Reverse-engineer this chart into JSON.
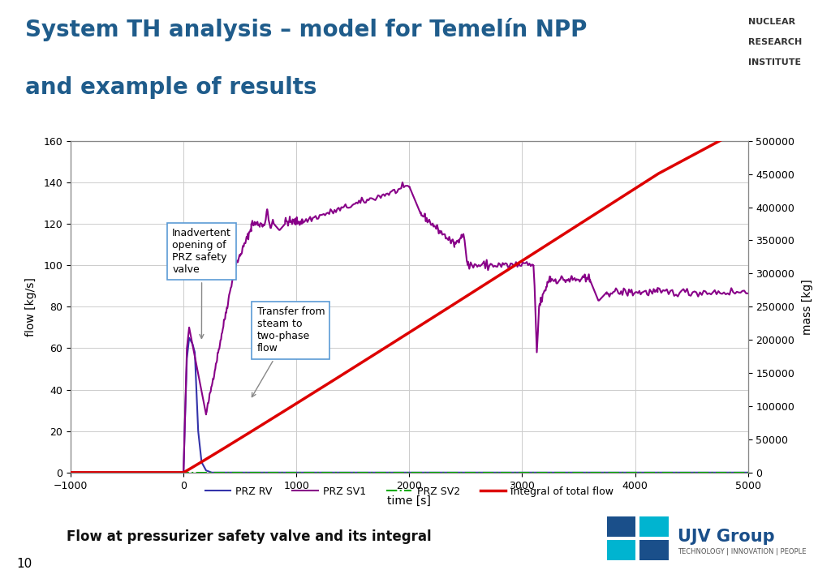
{
  "title_line1": "System TH analysis – model for Temelín NPP",
  "title_line2": "and example of results",
  "title_color": "#1f5c8b",
  "header_bar_color1": "#00b4d0",
  "header_bar_color2": "#0090aa",
  "xlabel": "time [s]",
  "ylabel_left": "flow [kg/s]",
  "ylabel_right": "mass [kg]",
  "xlim": [
    -1000,
    5000
  ],
  "ylim_left": [
    0,
    160
  ],
  "ylim_right": [
    0,
    500000
  ],
  "xticks": [
    -1000,
    0,
    1000,
    2000,
    3000,
    4000,
    5000
  ],
  "yticks_left": [
    0,
    20,
    40,
    60,
    80,
    100,
    120,
    140,
    160
  ],
  "yticks_right": [
    0,
    50000,
    100000,
    150000,
    200000,
    250000,
    300000,
    350000,
    400000,
    450000,
    500000
  ],
  "prz_rv_color": "#3333aa",
  "prz_sv1_color": "#880088",
  "prz_sv2_color": "#00aa00",
  "integral_color": "#dd0000",
  "caption": "Flow at pressurizer safety valve and its integral",
  "caption_color": "#111111",
  "page_number": "10",
  "annotation1_text": "Inadvertent\nopening of\nPRZ safety\nvalve",
  "annotation2_text": "Transfer from\nsteam to\ntwo-phase\nflow",
  "background_color": "#ffffff",
  "plot_bg_color": "#ffffff",
  "grid_color": "#cccccc",
  "plot_border_color": "#999999",
  "nuclear_text1": "NUCLEAR",
  "nuclear_text2": "RESEARCH",
  "nuclear_text3": "INSTITUTE",
  "ujv_blue": "#1a4f8a",
  "ujv_cyan": "#00b4d0"
}
